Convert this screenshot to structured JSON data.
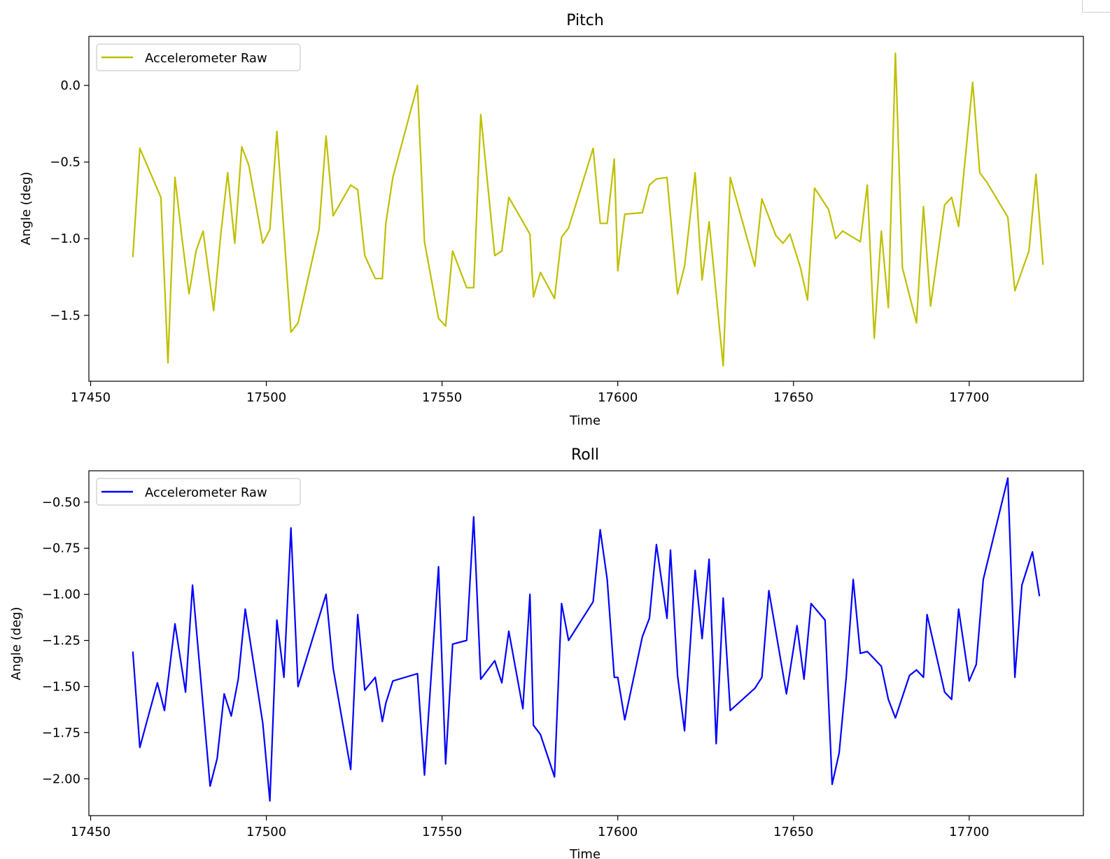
{
  "chart_data": [
    {
      "type": "line",
      "title": "Pitch",
      "xlabel": "Time",
      "ylabel": "Angle (deg)",
      "xlim": [
        17449.5,
        17732.5
      ],
      "ylim": [
        -1.93,
        0.32
      ],
      "xticks": [
        17450,
        17500,
        17550,
        17600,
        17650,
        17700
      ],
      "xtick_labels": [
        "17450",
        "17500",
        "17550",
        "17600",
        "17650",
        "17700"
      ],
      "yticks": [
        0.0,
        -0.5,
        -1.0,
        -1.5
      ],
      "ytick_labels": [
        "0.0",
        "−0.5",
        "−1.0",
        "−1.5"
      ],
      "legend_position": "upper-left",
      "grid": false,
      "series": [
        {
          "name": "Accelerometer Raw",
          "color": "#bfbf00",
          "x": [
            17462,
            17464,
            17470,
            17472,
            17474,
            17476,
            17478,
            17480,
            17482,
            17485,
            17487,
            17489,
            17491,
            17493,
            17495,
            17499,
            17501,
            17503,
            17507,
            17509,
            17515,
            17517,
            17519,
            17524,
            17526,
            17528,
            17531,
            17533,
            17534,
            17536,
            17543,
            17545,
            17549,
            17551,
            17553,
            17557,
            17559,
            17561,
            17565,
            17567,
            17569,
            17575,
            17576,
            17578,
            17582,
            17584,
            17586,
            17593,
            17595,
            17597,
            17599,
            17600,
            17602,
            17607,
            17609,
            17611,
            17614,
            17617,
            17619,
            17622,
            17624,
            17626,
            17630,
            17632,
            17639,
            17641,
            17645,
            17647,
            17649,
            17652,
            17654,
            17656,
            17660,
            17662,
            17664,
            17669,
            17671,
            17673,
            17675,
            17677,
            17679,
            17681,
            17685,
            17687,
            17689,
            17693,
            17695,
            17697,
            17701,
            17703,
            17705,
            17711,
            17713,
            17717,
            17719,
            17721
          ],
          "y": [
            -1.12,
            -0.41,
            -0.73,
            -1.81,
            -0.6,
            -1.0,
            -1.36,
            -1.08,
            -0.95,
            -1.47,
            -0.98,
            -0.57,
            -1.03,
            -0.4,
            -0.52,
            -1.03,
            -0.94,
            -0.3,
            -1.61,
            -1.55,
            -0.94,
            -0.33,
            -0.85,
            -0.65,
            -0.68,
            -1.11,
            -1.26,
            -1.26,
            -0.9,
            -0.6,
            0.0,
            -1.02,
            -1.52,
            -1.57,
            -1.08,
            -1.32,
            -1.32,
            -0.19,
            -1.11,
            -1.08,
            -0.73,
            -0.97,
            -1.38,
            -1.22,
            -1.39,
            -0.99,
            -0.93,
            -0.41,
            -0.9,
            -0.9,
            -0.48,
            -1.21,
            -0.84,
            -0.83,
            -0.65,
            -0.61,
            -0.6,
            -1.36,
            -1.18,
            -0.57,
            -1.27,
            -0.89,
            -1.83,
            -0.6,
            -1.18,
            -0.74,
            -0.98,
            -1.03,
            -0.97,
            -1.19,
            -1.4,
            -0.67,
            -0.81,
            -1.0,
            -0.95,
            -1.02,
            -0.65,
            -1.65,
            -0.95,
            -1.45,
            0.21,
            -1.19,
            -1.55,
            -0.79,
            -1.44,
            -0.78,
            -0.73,
            -0.92,
            0.02,
            -0.57,
            -0.63,
            -0.86,
            -1.34,
            -1.08,
            -0.58,
            -1.17
          ]
        }
      ]
    },
    {
      "type": "line",
      "title": "Roll",
      "xlabel": "Time",
      "ylabel": "Angle (deg)",
      "xlim": [
        17449.5,
        17732.5
      ],
      "ylim": [
        -2.2,
        -0.33
      ],
      "xticks": [
        17450,
        17500,
        17550,
        17600,
        17650,
        17700
      ],
      "xtick_labels": [
        "17450",
        "17500",
        "17550",
        "17600",
        "17650",
        "17700"
      ],
      "yticks": [
        -0.5,
        -0.75,
        -1.0,
        -1.25,
        -1.5,
        -1.75,
        -2.0
      ],
      "ytick_labels": [
        "−0.50",
        "−0.75",
        "−1.00",
        "−1.25",
        "−1.50",
        "−1.75",
        "−2.00"
      ],
      "legend_position": "upper-left",
      "grid": false,
      "series": [
        {
          "name": "Accelerometer Raw",
          "color": "#0000ff",
          "x": [
            17462,
            17464,
            17466,
            17469,
            17471,
            17474,
            17477,
            17479,
            17484,
            17486,
            17488,
            17490,
            17492,
            17494,
            17499,
            17501,
            17503,
            17505,
            17507,
            17509,
            17517,
            17519,
            17524,
            17526,
            17528,
            17531,
            17533,
            17534,
            17536,
            17543,
            17545,
            17549,
            17551,
            17553,
            17557,
            17559,
            17561,
            17565,
            17567,
            17569,
            17573,
            17575,
            17576,
            17578,
            17582,
            17584,
            17586,
            17593,
            17595,
            17597,
            17599,
            17600,
            17602,
            17607,
            17609,
            17611,
            17614,
            17615,
            17617,
            17619,
            17622,
            17624,
            17626,
            17628,
            17630,
            17632,
            17639,
            17641,
            17643,
            17648,
            17651,
            17653,
            17655,
            17659,
            17661,
            17663,
            17665,
            17667,
            17669,
            17671,
            17675,
            17677,
            17679,
            17683,
            17685,
            17687,
            17688,
            17693,
            17695,
            17697,
            17700,
            17702,
            17704,
            17711,
            17713,
            17715,
            17718,
            17720
          ],
          "y": [
            -1.31,
            -1.83,
            -1.69,
            -1.48,
            -1.63,
            -1.16,
            -1.53,
            -0.95,
            -2.04,
            -1.89,
            -1.54,
            -1.66,
            -1.46,
            -1.08,
            -1.7,
            -2.12,
            -1.14,
            -1.45,
            -0.64,
            -1.5,
            -1.0,
            -1.4,
            -1.95,
            -1.11,
            -1.52,
            -1.45,
            -1.69,
            -1.59,
            -1.47,
            -1.43,
            -1.98,
            -0.85,
            -1.92,
            -1.27,
            -1.25,
            -0.58,
            -1.46,
            -1.36,
            -1.48,
            -1.2,
            -1.62,
            -1.0,
            -1.71,
            -1.76,
            -1.99,
            -1.05,
            -1.25,
            -1.04,
            -0.65,
            -0.92,
            -1.45,
            -1.45,
            -1.68,
            -1.23,
            -1.13,
            -0.73,
            -1.13,
            -0.76,
            -1.44,
            -1.74,
            -0.87,
            -1.24,
            -0.81,
            -1.81,
            -1.02,
            -1.63,
            -1.51,
            -1.45,
            -0.98,
            -1.54,
            -1.17,
            -1.46,
            -1.05,
            -1.14,
            -2.03,
            -1.86,
            -1.45,
            -0.92,
            -1.32,
            -1.31,
            -1.39,
            -1.57,
            -1.67,
            -1.44,
            -1.41,
            -1.45,
            -1.11,
            -1.53,
            -1.57,
            -1.08,
            -1.47,
            -1.38,
            -0.92,
            -0.37,
            -1.45,
            -0.95,
            -0.77,
            -1.01
          ]
        }
      ]
    }
  ]
}
